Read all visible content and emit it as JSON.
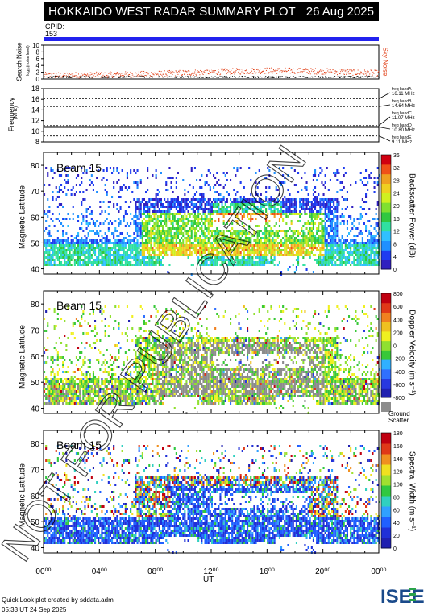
{
  "header": {
    "title": "HOKKAIDO WEST RADAR SUMMARY PLOT",
    "date": "26 Aug 2025",
    "cpid_label": "CPID:",
    "cpid_value": "153"
  },
  "colors": {
    "cpid_bar": "#2222ee",
    "noise_series": "#e03a10",
    "ground_scatter": "#8c8c8c"
  },
  "noise_panel": {
    "ylabel": "Search Noise",
    "ysub": "log₁₀(noise level)",
    "right_label": "Sky Noise",
    "yticks": [
      "0",
      "2",
      "4",
      "6",
      "8",
      "10"
    ]
  },
  "freq_panel": {
    "ylabel": "Frequency",
    "yunit": "(MHz)",
    "yticks": [
      "8",
      "10",
      "12",
      "14",
      "16",
      "18"
    ],
    "bands": [
      {
        "label": "freq bandA",
        "value": "16.11 MHz"
      },
      {
        "label": "freq bandB",
        "value": "14.64 MHz"
      },
      {
        "label": "freq bandC",
        "value": "11.07 MHz"
      },
      {
        "label": "freq bandD",
        "value": "10.80 MHz"
      },
      {
        "label": "freq bandE",
        "value": "9.11 MHz"
      }
    ]
  },
  "panels": [
    {
      "beam": "Beam 15",
      "ylabel": "Magnetic Latitude",
      "cbar_label": "Backscatter Power (dB)",
      "cbar_ticks": [
        "36",
        "32",
        "28",
        "24",
        "20",
        "16",
        "12",
        "8",
        "4",
        "0"
      ]
    },
    {
      "beam": "Beam 15",
      "ylabel": "Magnetic Latitude",
      "cbar_label": "Doppler Velocity (m s⁻¹)",
      "cbar_ticks": [
        "800",
        "600",
        "400",
        "200",
        "0",
        "-200",
        "-400",
        "-600",
        "-800"
      ],
      "gs_label1": "Ground",
      "gs_label2": "Scatter"
    },
    {
      "beam": "Beam 15",
      "ylabel": "Magnetic Latitude",
      "cbar_label": "Spectral Width (m s⁻¹)",
      "cbar_ticks": [
        "180",
        "160",
        "140",
        "120",
        "100",
        "80",
        "60",
        "40",
        "20",
        "0"
      ]
    }
  ],
  "lat_ticks": [
    "40",
    "50",
    "60",
    "70",
    "80"
  ],
  "x_axis": {
    "label": "UT",
    "ticks": [
      "00⁰⁰",
      "04⁰⁰",
      "08⁰⁰",
      "12⁰⁰",
      "16⁰⁰",
      "20⁰⁰",
      "00⁰⁰"
    ]
  },
  "footer": {
    "line1": "Quick Look plot created by sddata.adm",
    "line2": "05:33 UT 24 Sep 2025",
    "logo": "ISEE"
  },
  "watermark": "NOT FOR PUBLICATION",
  "chart_data": [
    {
      "type": "scatter",
      "ylabel": "Search Noise",
      "ylim": [
        0,
        10
      ],
      "series": [
        {
          "name": "Sky Noise",
          "x_hours": [
            0,
            4,
            8,
            12,
            16,
            20,
            24
          ],
          "values": [
            1.2,
            1.3,
            1.6,
            2.2,
            2.6,
            2.4,
            1.8
          ]
        }
      ]
    },
    {
      "type": "line",
      "ylabel": "Frequency",
      "ylim": [
        8,
        18
      ],
      "series": [
        {
          "name": "freq bandA",
          "values": [
            16.11
          ]
        },
        {
          "name": "freq bandB",
          "values": [
            14.64
          ]
        },
        {
          "name": "freq bandC",
          "values": [
            11.07
          ]
        },
        {
          "name": "freq bandD",
          "values": [
            10.8
          ]
        },
        {
          "name": "freq bandE",
          "values": [
            9.11
          ]
        }
      ]
    },
    {
      "type": "heatmap",
      "title": "Beam 15",
      "xlabel": "UT",
      "ylabel": "Magnetic Latitude",
      "ylim": [
        38,
        85
      ],
      "xlim": [
        0,
        24
      ],
      "colorbar": "Backscatter Power (dB)",
      "clim": [
        0,
        36
      ]
    },
    {
      "type": "heatmap",
      "title": "Beam 15",
      "xlabel": "UT",
      "ylabel": "Magnetic Latitude",
      "ylim": [
        38,
        85
      ],
      "xlim": [
        0,
        24
      ],
      "colorbar": "Doppler Velocity (m s⁻¹)",
      "clim": [
        -800,
        800
      ]
    },
    {
      "type": "heatmap",
      "title": "Beam 15",
      "xlabel": "UT",
      "ylabel": "Magnetic Latitude",
      "ylim": [
        38,
        85
      ],
      "xlim": [
        0,
        24
      ],
      "colorbar": "Spectral Width (m s⁻¹)",
      "clim": [
        0,
        180
      ]
    }
  ]
}
